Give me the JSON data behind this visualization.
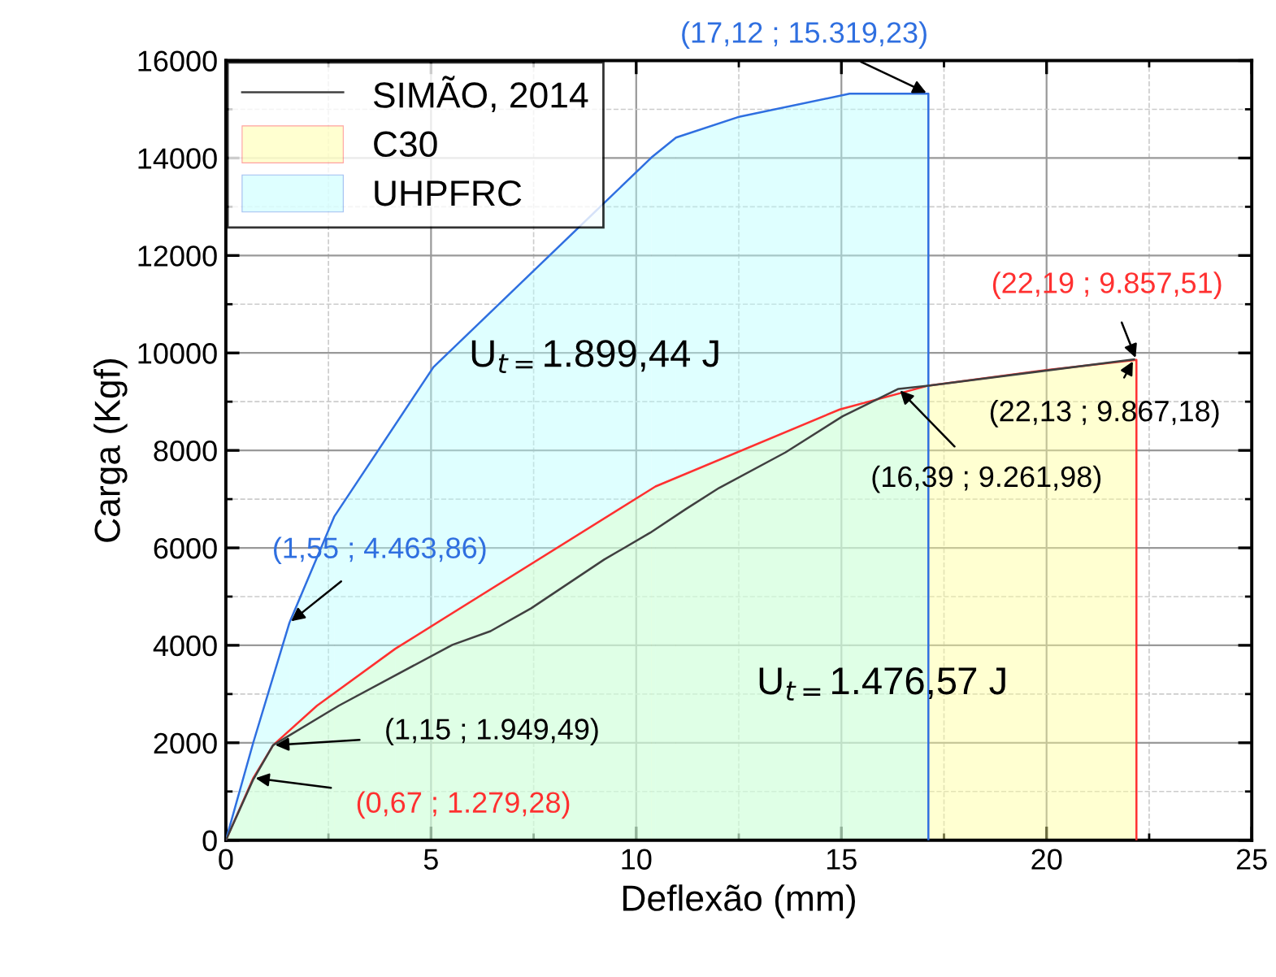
{
  "chart_data": {
    "type": "area",
    "xlabel": "Deflexão (mm)",
    "ylabel": "Carga (Kgf)",
    "xlim": [
      0,
      25
    ],
    "xticks": [
      0,
      5,
      10,
      15,
      20,
      25
    ],
    "ylim": [
      0,
      16000
    ],
    "yticks": [
      0,
      2000,
      4000,
      6000,
      8000,
      10000,
      12000,
      14000,
      16000
    ],
    "grid": true,
    "legend": "top left",
    "series": [
      {
        "name": "SIMÃO, 2014",
        "type": "line",
        "color": "#404040",
        "x": [
          0,
          0.67,
          1.15,
          2.75,
          5.52,
          6.45,
          7.44,
          9.22,
          10.34,
          11.2,
          12.02,
          13.64,
          15.03,
          16.39,
          17.12,
          22.13
        ],
        "values": [
          0,
          1250,
          1949.49,
          2760,
          4010,
          4290,
          4760,
          5760,
          6310,
          6790,
          7230,
          7960,
          8700,
          9261.98,
          9330,
          9867.18
        ]
      },
      {
        "name": "C30",
        "color": "#ff3030",
        "colors": [
          "#ffff99",
          "#ffff99",
          "#ffff99",
          "#ffff99",
          "#ffff99",
          "#ffff99",
          "#ffff99",
          "#ffff99",
          "#ffff99",
          "#ffff99",
          "#ffff99"
        ],
        "x": [
          0,
          0.67,
          1.15,
          2.22,
          4.13,
          10.47,
          14.96,
          17.12,
          20,
          22.19,
          22.19
        ],
        "values": [
          0,
          1279.28,
          1949.49,
          2760,
          3930,
          7260,
          8840,
          9330,
          9650,
          9857.51,
          0
        ]
      },
      {
        "name": "UHPFRC",
        "color": "#2f6fe0",
        "colors": [
          "#b8ffff",
          "#b8ffff",
          "#b8ffff",
          "#b8ffff",
          "#b8ffff",
          "#b8ffff",
          "#b8ffff",
          "#b8ffff",
          "#b8ffff",
          "#b8ffff",
          "#b8ffff"
        ],
        "x": [
          0,
          0.67,
          1.55,
          2.64,
          5.06,
          10.37,
          10.97,
          12.48,
          15.2,
          17.12,
          17.12
        ],
        "values": [
          0,
          2010,
          4463.86,
          6640,
          9710,
          14010,
          14420,
          14840,
          15319.23,
          15319.23,
          0
        ]
      }
    ],
    "annotations": [
      {
        "text": "(17,12 ; 15.319,23)",
        "x": 17.12,
        "y": 15319.23
      },
      {
        "text": "(22,19 ; 9.857,51)",
        "x": 22.19,
        "y": 9857.51
      },
      {
        "text": "(22,13 ; 9.867,18)",
        "x": 22.13,
        "y": 9867.18
      },
      {
        "text": "(16,39 ; 9.261,98)",
        "x": 16.39,
        "y": 9261.98
      },
      {
        "text": "(1,55 ; 4.463,86)",
        "x": 1.55,
        "y": 4463.86
      },
      {
        "text": "(1,15 ; 1.949,49)",
        "x": 1.15,
        "y": 1949.49
      },
      {
        "text": "(0,67 ; 1.279,28)",
        "x": 0.67,
        "y": 1279.28
      },
      "U$_{t=}$1.899,44 J",
      "U$_{t=}$1.476,57 J"
    ]
  }
}
